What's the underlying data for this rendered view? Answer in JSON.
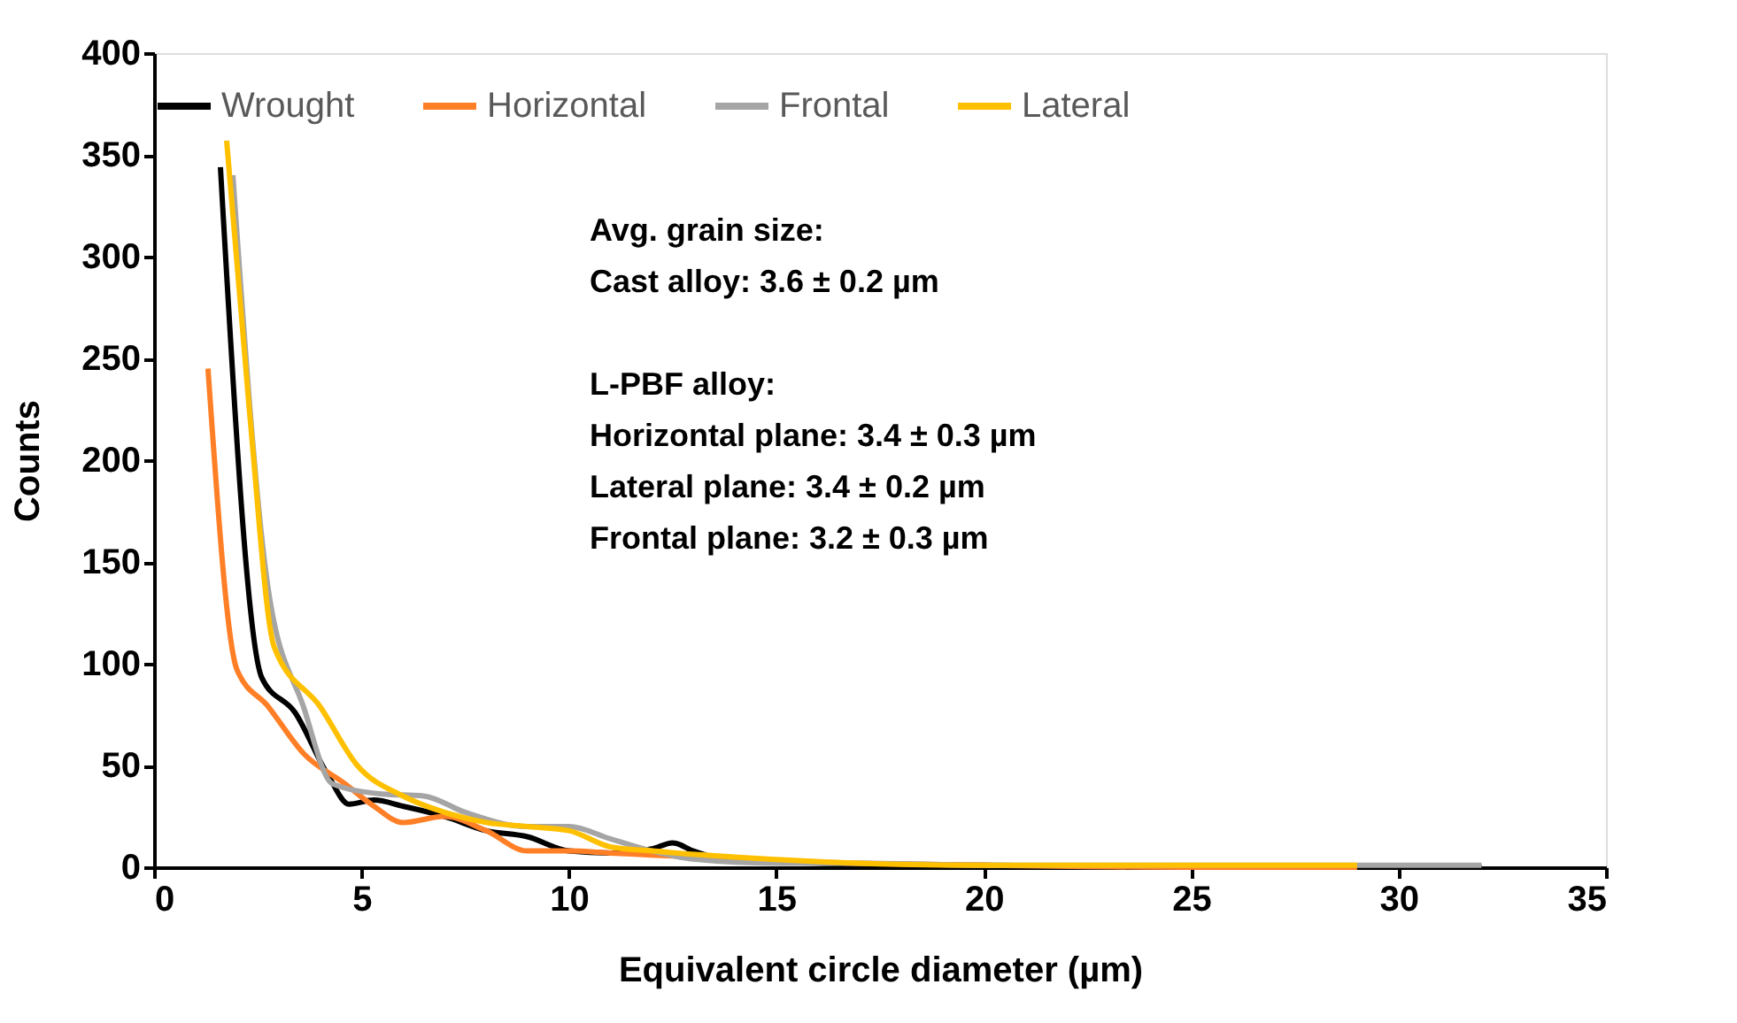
{
  "chart_data": {
    "type": "line",
    "xlabel": "Equivalent circle diameter (µm)",
    "ylabel": "Counts",
    "xlim": [
      0,
      35
    ],
    "xticks": [
      0,
      5,
      10,
      15,
      20,
      25,
      30,
      35
    ],
    "ylim": [
      0,
      400
    ],
    "yticks": [
      0,
      50,
      100,
      150,
      200,
      250,
      300,
      350,
      400
    ],
    "grid": false,
    "legend": "top",
    "marker": "none",
    "line_style": "solid",
    "series": [
      {
        "name": "Wrought",
        "color": "#000000",
        "x": [
          1.6,
          2.6,
          3.4,
          4.2,
          4.7,
          5.3,
          6,
          7,
          8,
          9,
          10,
          11,
          12,
          12.5,
          13,
          14,
          16,
          18,
          20,
          25,
          32
        ],
        "values": [
          344,
          93,
          76,
          45,
          31,
          33,
          30,
          25,
          18,
          15,
          8,
          7,
          9,
          12,
          8,
          3,
          2,
          1,
          1,
          0,
          0
        ]
      },
      {
        "name": "Horizontal",
        "color": "#ff7f27",
        "x": [
          1.3,
          2.0,
          2.75,
          3.6,
          4.6,
          5.3,
          6,
          7,
          8,
          9,
          10,
          11,
          12,
          13,
          15,
          17,
          20,
          25,
          29
        ],
        "values": [
          245,
          97,
          79,
          56,
          41,
          30,
          22,
          25,
          18,
          8,
          8,
          7,
          6,
          5,
          3,
          2,
          1,
          0,
          0
        ]
      },
      {
        "name": "Frontal",
        "color": "#a5a5a5",
        "x": [
          1.9,
          2.75,
          3.6,
          4.3,
          5.5,
          6.5,
          7.5,
          9,
          10,
          11,
          12,
          13,
          15,
          17,
          20,
          25,
          32
        ],
        "values": [
          340,
          137,
          79,
          41,
          36,
          35,
          27,
          20,
          20,
          14,
          8,
          4,
          2,
          2,
          1,
          1,
          1
        ]
      },
      {
        "name": "Lateral",
        "color": "#ffc000",
        "x": [
          1.75,
          2.3,
          2.9,
          4.0,
          4.9,
          6,
          7,
          8,
          9,
          10,
          11,
          12,
          14,
          17,
          20,
          25,
          29
        ],
        "values": [
          357,
          224,
          108,
          79,
          50,
          35,
          27,
          22,
          20,
          18,
          10,
          8,
          5,
          2,
          1,
          1,
          1
        ]
      }
    ],
    "annotations": [
      "Avg. grain size:\nCast alloy: 3.6 ± 0.2 µm",
      "L-PBF alloy:\nHorizontal plane: 3.4 ± 0.3 µm\nLateral plane: 3.4 ± 0.2 µm\nFrontal plane: 3.2 ± 0.3 µm"
    ]
  }
}
